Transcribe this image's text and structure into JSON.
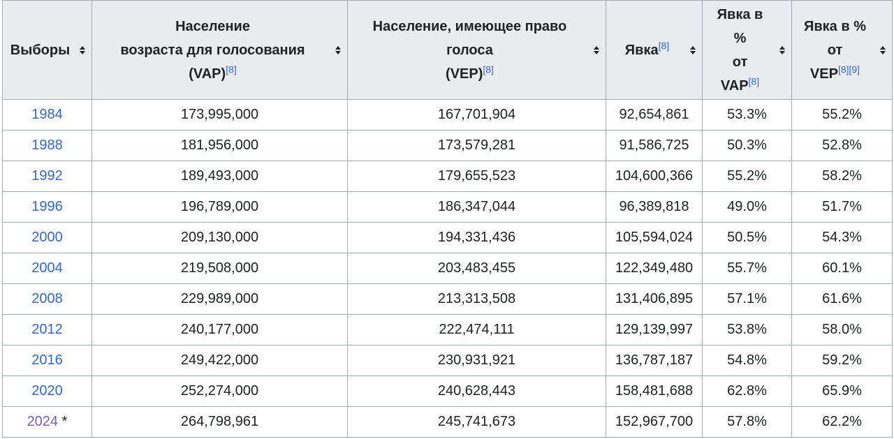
{
  "headers": [
    {
      "lines": [
        "Выборы"
      ],
      "sup": ""
    },
    {
      "lines": [
        "Население",
        "возраста для голосования",
        "(VAP)"
      ],
      "sup": "[8]"
    },
    {
      "lines": [
        "Население, имеющее право",
        "голоса",
        "(VEP)"
      ],
      "sup": "[8]"
    },
    {
      "lines": [
        "Явка"
      ],
      "sup": "[8]"
    },
    {
      "lines": [
        "Явка в",
        "%",
        "от",
        "VAP"
      ],
      "sup": "[8]"
    },
    {
      "lines": [
        "Явка в %",
        "от",
        "VEP"
      ],
      "sup": "[8][9]"
    }
  ],
  "rows": [
    {
      "year": "1984",
      "vap": "173,995,000",
      "vep": "167,701,904",
      "turnout": "92,654,861",
      "pct_vap": "53.3%",
      "pct_vep": "55.2%",
      "note": ""
    },
    {
      "year": "1988",
      "vap": "181,956,000",
      "vep": "173,579,281",
      "turnout": "91,586,725",
      "pct_vap": "50.3%",
      "pct_vep": "52.8%",
      "note": ""
    },
    {
      "year": "1992",
      "vap": "189,493,000",
      "vep": "179,655,523",
      "turnout": "104,600,366",
      "pct_vap": "55.2%",
      "pct_vep": "58.2%",
      "note": ""
    },
    {
      "year": "1996",
      "vap": "196,789,000",
      "vep": "186,347,044",
      "turnout": "96,389,818",
      "pct_vap": "49.0%",
      "pct_vep": "51.7%",
      "note": ""
    },
    {
      "year": "2000",
      "vap": "209,130,000",
      "vep": "194,331,436",
      "turnout": "105,594,024",
      "pct_vap": "50.5%",
      "pct_vep": "54.3%",
      "note": ""
    },
    {
      "year": "2004",
      "vap": "219,508,000",
      "vep": "203,483,455",
      "turnout": "122,349,480",
      "pct_vap": "55.7%",
      "pct_vep": "60.1%",
      "note": ""
    },
    {
      "year": "2008",
      "vap": "229,989,000",
      "vep": "213,313,508",
      "turnout": "131,406,895",
      "pct_vap": "57.1%",
      "pct_vep": "61.6%",
      "note": ""
    },
    {
      "year": "2012",
      "vap": "240,177,000",
      "vep": "222,474,111",
      "turnout": "129,139,997",
      "pct_vap": "53.8%",
      "pct_vep": "58.0%",
      "note": ""
    },
    {
      "year": "2016",
      "vap": "249,422,000",
      "vep": "230,931,921",
      "turnout": "136,787,187",
      "pct_vap": "54.8%",
      "pct_vep": "59.2%",
      "note": ""
    },
    {
      "year": "2020",
      "vap": "252,274,000",
      "vep": "240,628,443",
      "turnout": "158,481,688",
      "pct_vap": "62.8%",
      "pct_vep": "65.9%",
      "note": ""
    },
    {
      "year": "2024",
      "vap": "264,798,961",
      "vep": "245,741,673",
      "turnout": "152,967,700",
      "pct_vap": "57.8%",
      "pct_vep": "62.2%",
      "note": "*"
    }
  ],
  "colors": {
    "link": "#3366cc",
    "visited_link": "#795cb2",
    "header_bg": "#eaecf0",
    "border": "#a2a9b1"
  },
  "icons": {
    "sort": "sort-up-down-icon"
  }
}
